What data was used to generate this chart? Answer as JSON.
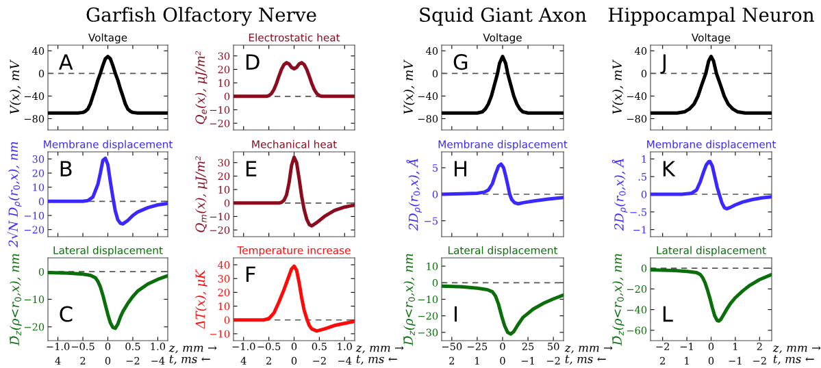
{
  "chart_data": [
    {
      "type": "line",
      "title": "Voltage",
      "subtitle": "Garfish Olfactory Nerve",
      "ylabel": "V(x), mV",
      "annotations": [
        "A"
      ],
      "tick_labels": "y",
      "x": [
        -1.2,
        -0.6,
        -0.5,
        -0.45,
        -0.4,
        -0.35,
        -0.3,
        -0.25,
        -0.2,
        -0.15,
        -0.1,
        -0.05,
        0,
        0.05,
        0.1,
        0.15,
        0.2,
        0.25,
        0.3,
        0.35,
        0.4,
        0.45,
        0.5,
        0.6,
        1.2
      ],
      "series": [
        {
          "color": "#000000",
          "values": [
            -70,
            -70,
            -69,
            -67,
            -63,
            -54,
            -40,
            -27,
            -12,
            0,
            14,
            26,
            30,
            26,
            14,
            0,
            -12,
            -27,
            -40,
            -54,
            -63,
            -67,
            -69,
            -70,
            -70
          ]
        }
      ],
      "xlim": [
        -1.2,
        1.2
      ],
      "ylim": [
        -100,
        50
      ],
      "xticks": [
        {
          "value": -1.0,
          "label": null
        },
        {
          "value": -0.5,
          "label": null
        },
        {
          "value": 0,
          "label": null
        },
        {
          "value": 0.5,
          "label": null
        },
        {
          "value": 1.0,
          "label": null
        }
      ],
      "yticks": [
        {
          "value": -80,
          "label": "−80"
        },
        {
          "value": -40,
          "label": "−40"
        },
        0,
        40
      ],
      "ref_lines": [
        {
          "axis": "y",
          "value": 0,
          "color": "#555555",
          "line_style": "dashed"
        }
      ]
    },
    {
      "type": "line",
      "title": "Membrane displacement",
      "ylabel": "2√N D$_{ρ}$(r$_{0}$,x), nm",
      "annotations": [
        "B"
      ],
      "tick_labels": "y",
      "x": [
        -1.2,
        -0.5,
        -0.4,
        -0.3,
        -0.2,
        -0.15,
        -0.1,
        -0.05,
        0,
        0.05,
        0.1,
        0.15,
        0.2,
        0.25,
        0.3,
        0.4,
        0.5,
        0.6,
        0.8,
        1.0,
        1.2
      ],
      "series": [
        {
          "color": "#3b28ff",
          "values": [
            0,
            0,
            0.5,
            3,
            12,
            20,
            29,
            30.5,
            26,
            14,
            3,
            -7,
            -13,
            -15.5,
            -16,
            -13.5,
            -10,
            -7.5,
            -4.5,
            -2.5,
            -1.5
          ]
        }
      ],
      "xlim": [
        -1.2,
        1.2
      ],
      "ylim": [
        -25,
        35
      ],
      "xticks": [
        {
          "value": -1.0,
          "label": null
        },
        {
          "value": -0.5,
          "label": null
        },
        {
          "value": 0,
          "label": null
        },
        {
          "value": 0.5,
          "label": null
        },
        {
          "value": 1.0,
          "label": null
        }
      ],
      "yticks": [
        {
          "value": -20,
          "label": "−20"
        },
        {
          "value": -10,
          "label": "−10"
        },
        0,
        10,
        20,
        30
      ],
      "ref_lines": [
        {
          "axis": "y",
          "value": 0,
          "color": "#555555",
          "line_style": "dashed"
        }
      ]
    },
    {
      "type": "line",
      "title": "Lateral displacement",
      "ylabel": "D̄$_{z}$(ρ<r$_{0}$,x), nm",
      "xlabel": "z, mm →",
      "x2label": "t, ms ←",
      "annotations": [
        "C"
      ],
      "x": [
        -1.2,
        -0.8,
        -0.5,
        -0.35,
        -0.25,
        -0.2,
        -0.15,
        -0.1,
        -0.05,
        0,
        0.05,
        0.1,
        0.15,
        0.2,
        0.25,
        0.3,
        0.4,
        0.5,
        0.6,
        0.8,
        1.0,
        1.2
      ],
      "series": [
        {
          "color": "#0a6e0a",
          "values": [
            -0.3,
            -0.5,
            -0.9,
            -1.3,
            -2.2,
            -3.5,
            -5.5,
            -8.5,
            -12,
            -15.5,
            -18.5,
            -20.2,
            -20.5,
            -19,
            -16.5,
            -14.5,
            -11.5,
            -9,
            -7,
            -4.5,
            -2.8,
            -1.5
          ]
        }
      ],
      "xlim": [
        -1.2,
        1.2
      ],
      "ylim": [
        -25,
        5
      ],
      "x2lim": [
        4.8,
        -4.8
      ],
      "xticks": [
        {
          "value": -1.0,
          "label": "−1.0"
        },
        {
          "value": -0.5,
          "label": "−0.5"
        },
        0,
        0.5,
        {
          "value": 1.0,
          "label": "1.0"
        }
      ],
      "x2ticks": [
        4,
        2,
        0,
        {
          "value": -2,
          "label": "−2"
        },
        {
          "value": -4,
          "label": "−4"
        }
      ],
      "yticks": [
        {
          "value": -20,
          "label": "−20"
        },
        {
          "value": -10,
          "label": "−10"
        },
        0
      ],
      "ref_lines": [
        {
          "axis": "y",
          "value": 0,
          "color": "#555555",
          "line_style": "dashed"
        }
      ]
    },
    {
      "type": "line",
      "title": "Electrostatic heat",
      "ylabel": "Q$_{e}$(x), μJ/m²",
      "annotations": [
        "D"
      ],
      "tick_labels": "y",
      "x": [
        -1.2,
        -0.55,
        -0.5,
        -0.45,
        -0.4,
        -0.35,
        -0.3,
        -0.25,
        -0.2,
        -0.15,
        -0.1,
        -0.05,
        0,
        0.05,
        0.1,
        0.15,
        0.2,
        0.25,
        0.3,
        0.35,
        0.4,
        0.45,
        0.5,
        0.55,
        1.2
      ],
      "series": [
        {
          "color": "#8b0c1e",
          "values": [
            0,
            0,
            0.5,
            2,
            5,
            9.5,
            15,
            20,
            23.5,
            25,
            24,
            21.5,
            20.5,
            21.5,
            24,
            25,
            23.5,
            20,
            15,
            9.5,
            5,
            2,
            0.5,
            0,
            0
          ]
        }
      ],
      "xlim": [
        -1.2,
        1.2
      ],
      "ylim": [
        -25,
        38
      ],
      "xticks": [
        {
          "value": -1.0,
          "label": null
        },
        {
          "value": -0.5,
          "label": null
        },
        {
          "value": 0,
          "label": null
        },
        {
          "value": 0.5,
          "label": null
        },
        {
          "value": 1.0,
          "label": null
        }
      ],
      "yticks": [
        {
          "value": -20,
          "label": "−20"
        },
        {
          "value": -10,
          "label": "−10"
        },
        0,
        10,
        20,
        30
      ],
      "ref_lines": [
        {
          "axis": "y",
          "value": 0,
          "color": "#555555",
          "line_style": "dashed"
        }
      ]
    },
    {
      "type": "line",
      "title": "Mechanical heat",
      "ylabel": "Q$_{m}$(x), μJ/m²",
      "annotations": [
        "E"
      ],
      "tick_labels": "y",
      "x": [
        -1.2,
        -0.3,
        -0.25,
        -0.2,
        -0.15,
        -0.1,
        -0.05,
        0,
        0.05,
        0.1,
        0.15,
        0.2,
        0.25,
        0.3,
        0.35,
        0.45,
        0.6,
        0.8,
        1.0,
        1.2
      ],
      "series": [
        {
          "color": "#8b0c1e",
          "values": [
            0,
            0,
            0.5,
            2,
            6,
            15,
            28,
            34,
            30,
            18,
            5,
            -5,
            -12,
            -16,
            -17,
            -14.5,
            -10,
            -5.5,
            -3,
            -1.5
          ]
        }
      ],
      "xlim": [
        -1.2,
        1.2
      ],
      "ylim": [
        -25,
        38
      ],
      "xticks": [
        {
          "value": -1.0,
          "label": null
        },
        {
          "value": -0.5,
          "label": null
        },
        {
          "value": 0,
          "label": null
        },
        {
          "value": 0.5,
          "label": null
        },
        {
          "value": 1.0,
          "label": null
        }
      ],
      "yticks": [
        {
          "value": -20,
          "label": "−20"
        },
        {
          "value": -10,
          "label": "−10"
        },
        0,
        10,
        20,
        30
      ],
      "ref_lines": [
        {
          "axis": "y",
          "value": 0,
          "color": "#555555",
          "line_style": "dashed"
        }
      ]
    },
    {
      "type": "line",
      "title": "Temperature increase",
      "ylabel": "ΔT(x), μK",
      "xlabel": "z, mm →",
      "x2label": "t, ms ←",
      "annotations": [
        "F"
      ],
      "x": [
        -1.2,
        -0.6,
        -0.5,
        -0.4,
        -0.3,
        -0.2,
        -0.1,
        -0.05,
        0,
        0.05,
        0.1,
        0.15,
        0.2,
        0.25,
        0.3,
        0.35,
        0.45,
        0.6,
        0.8,
        1.0,
        1.2
      ],
      "series": [
        {
          "color": "#ff0a0a",
          "values": [
            0,
            0,
            1,
            5,
            13,
            22,
            32,
            37,
            39,
            36,
            27,
            16,
            7,
            1,
            -4,
            -6.5,
            -8,
            -6.5,
            -4,
            -2.5,
            -1
          ]
        }
      ],
      "xlim": [
        -1.2,
        1.2
      ],
      "ylim": [
        -15,
        45
      ],
      "x2lim": [
        4.8,
        -4.8
      ],
      "xticks": [
        {
          "value": -1.0,
          "label": "−1.0"
        },
        {
          "value": -0.5,
          "label": "−0.5"
        },
        0,
        0.5,
        {
          "value": 1.0,
          "label": "1.0"
        }
      ],
      "x2ticks": [
        4,
        2,
        0,
        {
          "value": -2,
          "label": "−2"
        },
        {
          "value": -4,
          "label": "−4"
        }
      ],
      "yticks": [
        {
          "value": -10,
          "label": "−10"
        },
        0,
        10,
        20,
        30,
        40
      ],
      "ref_lines": [
        {
          "axis": "y",
          "value": 0,
          "color": "#555555",
          "line_style": "dashed"
        }
      ]
    },
    {
      "type": "line",
      "title": "Voltage",
      "subtitle": "Squid Giant Axon",
      "ylabel": "V(x), mV",
      "annotations": [
        "G"
      ],
      "tick_labels": "y",
      "x": [
        -60,
        -25,
        -20,
        -17,
        -14,
        -11,
        -8,
        -5,
        -3,
        0,
        3,
        5,
        8,
        11,
        14,
        17,
        20,
        25,
        60
      ],
      "series": [
        {
          "color": "#000000",
          "values": [
            -70,
            -70,
            -68,
            -63,
            -54,
            -40,
            -20,
            0,
            18,
            30,
            18,
            0,
            -20,
            -40,
            -54,
            -63,
            -68,
            -70,
            -70
          ]
        }
      ],
      "xlim": [
        -60,
        60
      ],
      "ylim": [
        -100,
        50
      ],
      "xticks": [
        {
          "value": -50,
          "label": null
        },
        {
          "value": -25,
          "label": null
        },
        {
          "value": 0,
          "label": null
        },
        {
          "value": 25,
          "label": null
        },
        {
          "value": 50,
          "label": null
        }
      ],
      "yticks": [
        {
          "value": -80,
          "label": "−80"
        },
        {
          "value": -40,
          "label": "−40"
        },
        0,
        40
      ],
      "ref_lines": [
        {
          "axis": "y",
          "value": 0,
          "color": "#555555",
          "line_style": "dashed"
        }
      ]
    },
    {
      "type": "line",
      "title": "Membrane displacement",
      "ylabel": "2D$_{ρ}$(r$_{0}$,x), Å",
      "annotations": [
        "H"
      ],
      "tick_labels": "y",
      "x": [
        -60,
        -40,
        -25,
        -18,
        -14,
        -10,
        -7,
        -4,
        -1.5,
        1,
        3,
        5,
        7,
        9,
        12,
        15,
        20,
        30,
        45,
        60
      ],
      "series": [
        {
          "color": "#3b28ff",
          "values": [
            0,
            0.1,
            0.2,
            0.4,
            0.8,
            2,
            3.8,
            5.3,
            5.7,
            5,
            3.5,
            1.8,
            0,
            -1,
            -1.6,
            -1.8,
            -1.6,
            -1.3,
            -0.9,
            -0.6
          ]
        }
      ],
      "xlim": [
        -60,
        60
      ],
      "ylim": [
        -8,
        8
      ],
      "xticks": [
        {
          "value": -50,
          "label": null
        },
        {
          "value": -25,
          "label": null
        },
        {
          "value": 0,
          "label": null
        },
        {
          "value": 25,
          "label": null
        },
        {
          "value": 50,
          "label": null
        }
      ],
      "yticks": [
        {
          "value": -5,
          "label": "−5"
        },
        0,
        5
      ],
      "ref_lines": [
        {
          "axis": "y",
          "value": 0,
          "color": "#555555",
          "line_style": "dashed"
        }
      ]
    },
    {
      "type": "line",
      "title": "Lateral displacement",
      "ylabel": "D̄$_{z}$(ρ<r$_{0}$,x), nm",
      "xlabel": "z, mm →",
      "x2label": "t, ms ←",
      "annotations": [
        "I"
      ],
      "x": [
        -60,
        -40,
        -25,
        -15,
        -10,
        -7,
        -4,
        -1,
        2,
        5,
        8,
        11,
        15,
        20,
        25,
        30,
        40,
        50,
        60
      ],
      "series": [
        {
          "color": "#0a6e0a",
          "values": [
            -2,
            -2.5,
            -3.3,
            -4.2,
            -5.5,
            -8,
            -13,
            -20,
            -26,
            -30,
            -31,
            -29.5,
            -25.5,
            -21,
            -18.5,
            -16,
            -12.5,
            -9.8,
            -7.5
          ]
        }
      ],
      "xlim": [
        -60,
        60
      ],
      "ylim": [
        -35,
        15
      ],
      "x2lim": [
        2.4,
        -2.4
      ],
      "xticks": [
        {
          "value": -50,
          "label": "−50"
        },
        {
          "value": -25,
          "label": "−25"
        },
        0,
        25,
        50
      ],
      "x2ticks": [
        2,
        1,
        0,
        {
          "value": -1,
          "label": "−1"
        },
        {
          "value": -2,
          "label": "−2"
        }
      ],
      "yticks": [
        {
          "value": -30,
          "label": "−30"
        },
        {
          "value": -20,
          "label": "−20"
        },
        {
          "value": -10,
          "label": "−10"
        },
        0,
        10
      ],
      "ref_lines": [
        {
          "axis": "y",
          "value": 0,
          "color": "#555555",
          "line_style": "dashed"
        }
      ]
    },
    {
      "type": "line",
      "title": "Voltage",
      "subtitle": "Hippocampal Neuron",
      "ylabel": "V(x), mV",
      "annotations": [
        "J"
      ],
      "tick_labels": "y",
      "x": [
        -2.5,
        -1.4,
        -1.1,
        -0.9,
        -0.7,
        -0.54,
        -0.4,
        -0.22,
        -0.1,
        0,
        0.1,
        0.22,
        0.4,
        0.54,
        0.7,
        0.9,
        1.1,
        1.4,
        2.5
      ],
      "series": [
        {
          "color": "#000000",
          "values": [
            -70,
            -70,
            -68,
            -63,
            -54,
            -40,
            -22,
            0,
            22,
            30,
            22,
            0,
            -22,
            -40,
            -54,
            -63,
            -68,
            -70,
            -70
          ]
        }
      ],
      "xlim": [
        -2.5,
        2.5
      ],
      "ylim": [
        -100,
        50
      ],
      "xticks": [
        {
          "value": -2,
          "label": null
        },
        {
          "value": -1,
          "label": null
        },
        {
          "value": 0,
          "label": null
        },
        {
          "value": 1,
          "label": null
        },
        {
          "value": 2,
          "label": null
        }
      ],
      "yticks": [
        {
          "value": -80,
          "label": "−80"
        },
        {
          "value": -40,
          "label": "−40"
        },
        0,
        40
      ],
      "ref_lines": [
        {
          "axis": "y",
          "value": 0,
          "color": "#555555",
          "line_style": "dashed"
        }
      ]
    },
    {
      "type": "line",
      "title": "Membrane displacement",
      "ylabel": "2D$_{ρ}$(r$_{0}$,x), Å",
      "annotations": [
        "K"
      ],
      "tick_labels": "y",
      "x": [
        -2.5,
        -1.2,
        -0.8,
        -0.6,
        -0.45,
        -0.3,
        -0.2,
        -0.1,
        -0.05,
        0.05,
        0.15,
        0.25,
        0.35,
        0.45,
        0.55,
        0.65,
        0.8,
        1.0,
        1.3,
        1.7,
        2.1,
        2.5
      ],
      "series": [
        {
          "color": "#3b28ff",
          "values": [
            0,
            0,
            0.03,
            0.12,
            0.35,
            0.65,
            0.83,
            0.92,
            0.93,
            0.8,
            0.5,
            0.2,
            -0.03,
            -0.25,
            -0.38,
            -0.41,
            -0.37,
            -0.3,
            -0.22,
            -0.15,
            -0.1,
            -0.07
          ]
        }
      ],
      "xlim": [
        -2.5,
        2.5
      ],
      "ylim": [
        -1.2,
        1.2
      ],
      "xticks": [
        {
          "value": -2,
          "label": null
        },
        {
          "value": -1,
          "label": null
        },
        {
          "value": 0,
          "label": null
        },
        {
          "value": 1,
          "label": null
        },
        {
          "value": 2,
          "label": null
        }
      ],
      "yticks": [
        {
          "value": -1,
          "label": "−1"
        },
        {
          "value": -0.5,
          "label": "−.5"
        },
        0,
        {
          "value": 0.5,
          "label": ".5"
        },
        1
      ],
      "ref_lines": [
        {
          "axis": "y",
          "value": 0,
          "color": "#555555",
          "line_style": "dashed"
        }
      ]
    },
    {
      "type": "line",
      "title": "Lateral displacement",
      "ylabel": "D̄$_{z}$(ρ<r$_{0}$,x), nm",
      "xlabel": "z, mm →",
      "x2label": "t, ms ←",
      "annotations": [
        "L"
      ],
      "x": [
        -2.5,
        -1.5,
        -1.0,
        -0.6,
        -0.45,
        -0.35,
        -0.25,
        -0.15,
        -0.05,
        0.05,
        0.15,
        0.25,
        0.32,
        0.4,
        0.5,
        0.65,
        0.8,
        1.0,
        1.3,
        1.6,
        2.0,
        2.5
      ],
      "series": [
        {
          "color": "#0a6e0a",
          "values": [
            -1.5,
            -2.3,
            -3,
            -4.2,
            -6,
            -9,
            -14,
            -21,
            -29,
            -38,
            -46,
            -50.5,
            -51,
            -49.5,
            -45.5,
            -39.5,
            -34,
            -28.5,
            -22,
            -16.5,
            -11,
            -6
          ]
        }
      ],
      "xlim": [
        -2.5,
        2.5
      ],
      "ylim": [
        -70,
        10
      ],
      "x2lim": [
        2.5,
        -2.5
      ],
      "xticks": [
        {
          "value": -2,
          "label": "−2"
        },
        {
          "value": -1,
          "label": "−1"
        },
        0,
        1,
        2
      ],
      "x2ticks": [
        2,
        1,
        0,
        {
          "value": -1,
          "label": "−1"
        },
        {
          "value": -2,
          "label": "−2"
        }
      ],
      "yticks": [
        {
          "value": -60,
          "label": "−60"
        },
        {
          "value": -40,
          "label": "−40"
        },
        {
          "value": -20,
          "label": "−20"
        },
        0
      ],
      "ref_lines": [
        {
          "axis": "y",
          "value": 0,
          "color": "#555555",
          "line_style": "dashed"
        }
      ]
    }
  ]
}
